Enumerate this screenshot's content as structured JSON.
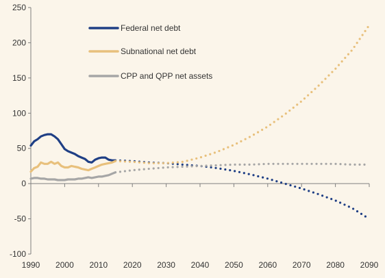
{
  "colors": {
    "background": "#fbf5ea",
    "axis": "#7f7f7f",
    "federal": "#1f3f85",
    "subnational": "#e8c07c",
    "cpp_qpp": "#a6a6a6"
  },
  "chart_data": {
    "type": "line",
    "title": "",
    "xlabel": "",
    "ylabel": "",
    "xlim": [
      1990,
      2090
    ],
    "ylim": [
      -100,
      250
    ],
    "grid": false,
    "legend": "top-left",
    "x_ticks": [
      "1990",
      "2000",
      "2010",
      "2020",
      "2030",
      "2040",
      "2050",
      "2060",
      "2070",
      "2080",
      "2090"
    ],
    "y_ticks": [
      "250",
      "200",
      "150",
      "100",
      "50",
      "0",
      "-50",
      "-100"
    ],
    "series": [
      {
        "name": "Federal net debt",
        "color_key": "federal",
        "historical": [
          [
            1990,
            54
          ],
          [
            1991,
            60
          ],
          [
            1992,
            63
          ],
          [
            1993,
            67
          ],
          [
            1994,
            69
          ],
          [
            1995,
            70
          ],
          [
            1996,
            70
          ],
          [
            1997,
            67
          ],
          [
            1998,
            63
          ],
          [
            1999,
            56
          ],
          [
            2000,
            49
          ],
          [
            2001,
            46
          ],
          [
            2002,
            44
          ],
          [
            2003,
            42
          ],
          [
            2004,
            39
          ],
          [
            2005,
            37
          ],
          [
            2006,
            35
          ],
          [
            2007,
            31
          ],
          [
            2008,
            30
          ],
          [
            2009,
            34
          ],
          [
            2010,
            36
          ],
          [
            2011,
            37
          ],
          [
            2012,
            37
          ],
          [
            2013,
            34
          ],
          [
            2014,
            33
          ],
          [
            2015,
            33
          ]
        ],
        "projected": [
          [
            2015,
            33
          ],
          [
            2020,
            32
          ],
          [
            2025,
            30
          ],
          [
            2030,
            29
          ],
          [
            2035,
            27
          ],
          [
            2040,
            25
          ],
          [
            2045,
            22
          ],
          [
            2050,
            18
          ],
          [
            2055,
            13
          ],
          [
            2060,
            7
          ],
          [
            2065,
            0
          ],
          [
            2070,
            -7
          ],
          [
            2075,
            -15
          ],
          [
            2080,
            -24
          ],
          [
            2085,
            -35
          ],
          [
            2090,
            -50
          ]
        ]
      },
      {
        "name": "Subnational net debt",
        "color_key": "subnational",
        "historical": [
          [
            1990,
            17
          ],
          [
            1991,
            22
          ],
          [
            1992,
            24
          ],
          [
            1993,
            30
          ],
          [
            1994,
            28
          ],
          [
            1995,
            28
          ],
          [
            1996,
            31
          ],
          [
            1997,
            28
          ],
          [
            1998,
            30
          ],
          [
            1999,
            25
          ],
          [
            2000,
            23
          ],
          [
            2001,
            23
          ],
          [
            2002,
            25
          ],
          [
            2003,
            24
          ],
          [
            2004,
            23
          ],
          [
            2005,
            21
          ],
          [
            2006,
            20
          ],
          [
            2007,
            19
          ],
          [
            2008,
            21
          ],
          [
            2009,
            23
          ],
          [
            2010,
            25
          ],
          [
            2011,
            27
          ],
          [
            2012,
            28
          ],
          [
            2013,
            29
          ],
          [
            2014,
            30
          ],
          [
            2015,
            32
          ]
        ],
        "projected": [
          [
            2015,
            32
          ],
          [
            2020,
            31
          ],
          [
            2025,
            29
          ],
          [
            2030,
            29
          ],
          [
            2035,
            31
          ],
          [
            2040,
            37
          ],
          [
            2045,
            45
          ],
          [
            2050,
            55
          ],
          [
            2055,
            67
          ],
          [
            2060,
            81
          ],
          [
            2065,
            98
          ],
          [
            2070,
            117
          ],
          [
            2075,
            139
          ],
          [
            2080,
            163
          ],
          [
            2085,
            190
          ],
          [
            2090,
            225
          ]
        ]
      },
      {
        "name": "CPP and QPP net assets",
        "color_key": "cpp_qpp",
        "historical": [
          [
            1990,
            7
          ],
          [
            1991,
            8
          ],
          [
            1992,
            8
          ],
          [
            1993,
            7
          ],
          [
            1994,
            7
          ],
          [
            1995,
            6
          ],
          [
            1996,
            6
          ],
          [
            1997,
            6
          ],
          [
            1998,
            5
          ],
          [
            1999,
            5
          ],
          [
            2000,
            5
          ],
          [
            2001,
            6
          ],
          [
            2002,
            6
          ],
          [
            2003,
            6
          ],
          [
            2004,
            7
          ],
          [
            2005,
            7
          ],
          [
            2006,
            8
          ],
          [
            2007,
            9
          ],
          [
            2008,
            8
          ],
          [
            2009,
            9
          ],
          [
            2010,
            10
          ],
          [
            2011,
            10
          ],
          [
            2012,
            11
          ],
          [
            2013,
            12
          ],
          [
            2014,
            14
          ],
          [
            2015,
            16
          ]
        ],
        "projected": [
          [
            2015,
            16
          ],
          [
            2020,
            19
          ],
          [
            2025,
            21
          ],
          [
            2030,
            23
          ],
          [
            2035,
            24
          ],
          [
            2040,
            25
          ],
          [
            2045,
            26
          ],
          [
            2050,
            27
          ],
          [
            2055,
            27
          ],
          [
            2060,
            28
          ],
          [
            2065,
            28
          ],
          [
            2070,
            28
          ],
          [
            2075,
            28
          ],
          [
            2080,
            28
          ],
          [
            2085,
            27
          ],
          [
            2090,
            27
          ]
        ]
      }
    ]
  }
}
